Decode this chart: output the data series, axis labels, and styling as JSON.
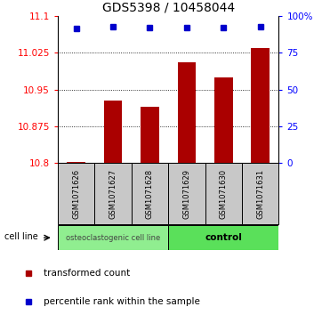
{
  "title": "GDS5398 / 10458044",
  "categories": [
    "GSM1071626",
    "GSM1071627",
    "GSM1071628",
    "GSM1071629",
    "GSM1071630",
    "GSM1071631"
  ],
  "bar_values": [
    10.803,
    10.928,
    10.915,
    11.005,
    10.975,
    11.035
  ],
  "percentile_values": [
    11.075,
    11.078,
    11.077,
    11.077,
    11.076,
    11.079
  ],
  "ylim": [
    10.8,
    11.1
  ],
  "yticks_left": [
    10.8,
    10.875,
    10.95,
    11.025,
    11.1
  ],
  "yticks_right": [
    0,
    25,
    50,
    75,
    100
  ],
  "bar_color": "#AA0000",
  "dot_color": "#0000CC",
  "grid_yticks": [
    11.025,
    10.95,
    10.875
  ],
  "group1_label": "osteoclastogenic cell line",
  "group2_label": "control",
  "group1_indices": [
    0,
    1,
    2
  ],
  "group2_indices": [
    3,
    4,
    5
  ],
  "cell_line_label": "cell line",
  "legend1_label": "transformed count",
  "legend2_label": "percentile rank within the sample",
  "group_bg_color": "#C8C8C8",
  "group1_fill": "#90EE90",
  "group2_fill": "#5AE05A",
  "bar_width": 0.5,
  "title_fontsize": 10,
  "tick_fontsize": 7.5,
  "label_fontsize": 7
}
